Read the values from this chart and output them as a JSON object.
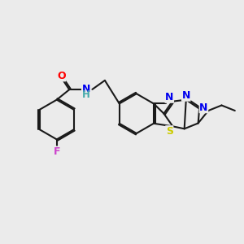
{
  "background_color": "#ebebeb",
  "bond_color": "#1a1a1a",
  "line_width": 1.5,
  "atom_colors": {
    "O": "#ff0000",
    "N": "#0000ee",
    "S": "#cccc00",
    "F": "#cc44cc",
    "H": "#44aaaa",
    "C": "#1a1a1a"
  },
  "font_size": 8.5
}
